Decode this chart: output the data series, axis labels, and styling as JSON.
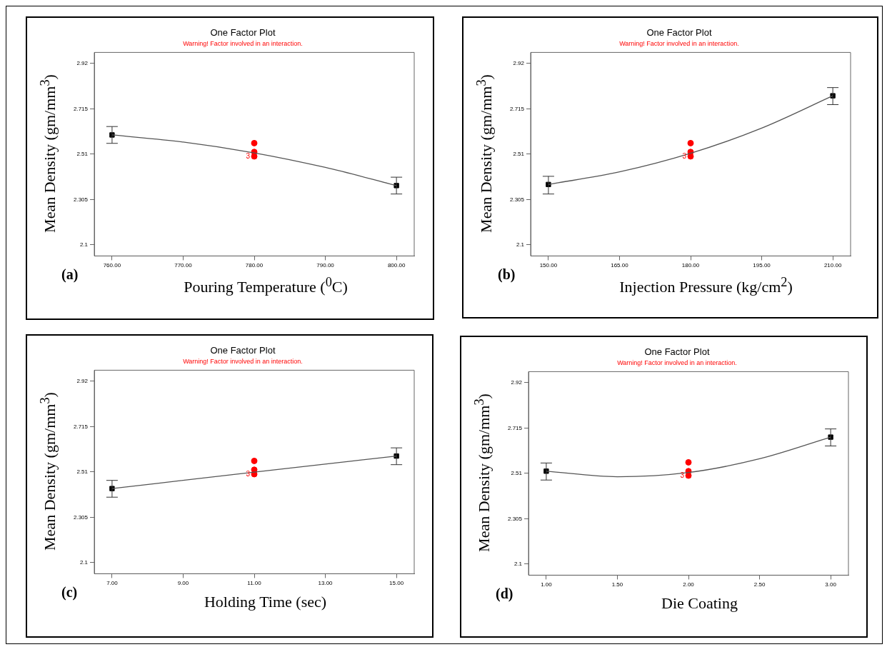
{
  "chart_data": [
    {
      "type": "line",
      "title": "One Factor Plot",
      "subtitle": "Warning! Factor involved in an interaction.",
      "xlabel": "Pouring Temperature ($^{0}$C)",
      "ylabel": "Mean Density (gm/mm$^{3}$)",
      "xlim": [
        757.5,
        802.5
      ],
      "xticks": [
        {
          "value": 760,
          "label": "760.00"
        },
        {
          "value": 770,
          "label": "770.00"
        },
        {
          "value": 780,
          "label": "780.00"
        },
        {
          "value": 790,
          "label": "790.00"
        },
        {
          "value": 800,
          "label": "800.00"
        }
      ],
      "ylim": [
        2.05,
        2.97
      ],
      "yticks": [
        2.1,
        2.305,
        2.51,
        2.715,
        2.92
      ],
      "grid": false,
      "legend": false,
      "annotations": [
        "(a)",
        {
          "text": "3",
          "x": 780,
          "y": 2.5
        }
      ],
      "series": [
        {
          "type": "line",
          "color": "#555555",
          "marker": "none",
          "x": [
            760,
            770,
            780,
            790,
            800
          ],
          "values": [
            2.597,
            2.565,
            2.516,
            2.45,
            2.368
          ]
        },
        {
          "type": "scatter",
          "color": "#000000",
          "marker": "square",
          "x": [
            760,
            800
          ],
          "values": [
            2.597,
            2.368
          ],
          "errors": [
            [
              2.559,
              2.635
            ],
            [
              2.33,
              2.406
            ]
          ]
        },
        {
          "type": "scatter",
          "color": "#ff0000",
          "marker": "circle",
          "x": [
            780,
            780,
            780
          ],
          "values": [
            2.56,
            2.52,
            2.5
          ]
        }
      ]
    },
    {
      "type": "line",
      "title": "One Factor Plot",
      "subtitle": "Warning! Factor involved in an interaction.",
      "xlabel": "Injection Pressure (kg/cm$^{2}$)",
      "ylabel": "Mean Density (gm/mm$^{3}$)",
      "xlim": [
        146.25,
        213.75
      ],
      "xticks": [
        {
          "value": 150,
          "label": "150.00"
        },
        {
          "value": 165,
          "label": "165.00"
        },
        {
          "value": 180,
          "label": "180.00"
        },
        {
          "value": 195,
          "label": "195.00"
        },
        {
          "value": 210,
          "label": "210.00"
        }
      ],
      "ylim": [
        2.05,
        2.97
      ],
      "yticks": [
        2.1,
        2.305,
        2.51,
        2.715,
        2.92
      ],
      "grid": false,
      "legend": false,
      "annotations": [
        "(b)",
        {
          "text": "3",
          "x": 180,
          "y": 2.5
        }
      ],
      "series": [
        {
          "type": "line",
          "color": "#555555",
          "marker": "none",
          "x": [
            150,
            165,
            180,
            195,
            210
          ],
          "values": [
            2.373,
            2.43,
            2.514,
            2.628,
            2.774
          ]
        },
        {
          "type": "scatter",
          "color": "#000000",
          "marker": "square",
          "x": [
            150,
            210
          ],
          "values": [
            2.373,
            2.774
          ],
          "errors": [
            [
              2.33,
              2.41
            ],
            [
              2.734,
              2.811
            ]
          ]
        },
        {
          "type": "scatter",
          "color": "#ff0000",
          "marker": "circle",
          "x": [
            180,
            180,
            180
          ],
          "values": [
            2.56,
            2.52,
            2.5
          ]
        }
      ]
    },
    {
      "type": "line",
      "title": "One Factor Plot",
      "subtitle": "Warning! Factor involved in an interaction.",
      "xlabel": "Holding Time (sec)",
      "ylabel": "Mean Density (gm/mm$^{3}$)",
      "xlim": [
        6.5,
        15.5
      ],
      "xticks": [
        {
          "value": 7,
          "label": "7.00"
        },
        {
          "value": 9,
          "label": "9.00"
        },
        {
          "value": 11,
          "label": "11.00"
        },
        {
          "value": 13,
          "label": "13.00"
        },
        {
          "value": 15,
          "label": "15.00"
        }
      ],
      "ylim": [
        2.05,
        2.97
      ],
      "yticks": [
        2.1,
        2.305,
        2.51,
        2.715,
        2.92
      ],
      "grid": false,
      "legend": false,
      "annotations": [
        "(c)",
        {
          "text": "3",
          "x": 11,
          "y": 2.5
        }
      ],
      "series": [
        {
          "type": "line",
          "color": "#555555",
          "marker": "none",
          "x": [
            7,
            11,
            15
          ],
          "values": [
            2.435,
            2.509,
            2.582
          ]
        },
        {
          "type": "scatter",
          "color": "#000000",
          "marker": "square",
          "x": [
            7,
            15
          ],
          "values": [
            2.435,
            2.582
          ],
          "errors": [
            [
              2.396,
              2.472
            ],
            [
              2.543,
              2.619
            ]
          ]
        },
        {
          "type": "scatter",
          "color": "#ff0000",
          "marker": "circle",
          "x": [
            11,
            11,
            11
          ],
          "values": [
            2.56,
            2.52,
            2.5
          ]
        }
      ]
    },
    {
      "type": "line",
      "title": "One Factor Plot",
      "subtitle": "Warning! Factor involved in an interaction.",
      "xlabel": "Die Coating",
      "ylabel": "Mean Density (gm/mm$^{3}$)",
      "xlim": [
        0.875,
        3.125
      ],
      "xticks": [
        {
          "value": 1,
          "label": "1.00"
        },
        {
          "value": 1.5,
          "label": "1.50"
        },
        {
          "value": 2,
          "label": "2.00"
        },
        {
          "value": 2.5,
          "label": "2.50"
        },
        {
          "value": 3,
          "label": "3.00"
        }
      ],
      "ylim": [
        2.05,
        2.97
      ],
      "yticks": [
        2.1,
        2.305,
        2.51,
        2.715,
        2.92
      ],
      "grid": false,
      "legend": false,
      "annotations": [
        "(d)",
        {
          "text": "3",
          "x": 2,
          "y": 2.5
        }
      ],
      "series": [
        {
          "type": "line",
          "color": "#555555",
          "marker": "none",
          "x": [
            1,
            1.5,
            2,
            2.5,
            3
          ],
          "values": [
            2.52,
            2.495,
            2.514,
            2.576,
            2.674
          ]
        },
        {
          "type": "scatter",
          "color": "#000000",
          "marker": "square",
          "x": [
            1,
            3
          ],
          "values": [
            2.52,
            2.674
          ],
          "errors": [
            [
              2.48,
              2.557
            ],
            [
              2.634,
              2.711
            ]
          ]
        },
        {
          "type": "scatter",
          "color": "#ff0000",
          "marker": "circle",
          "x": [
            2,
            2,
            2
          ],
          "values": [
            2.56,
            2.52,
            2.5
          ]
        }
      ]
    }
  ]
}
